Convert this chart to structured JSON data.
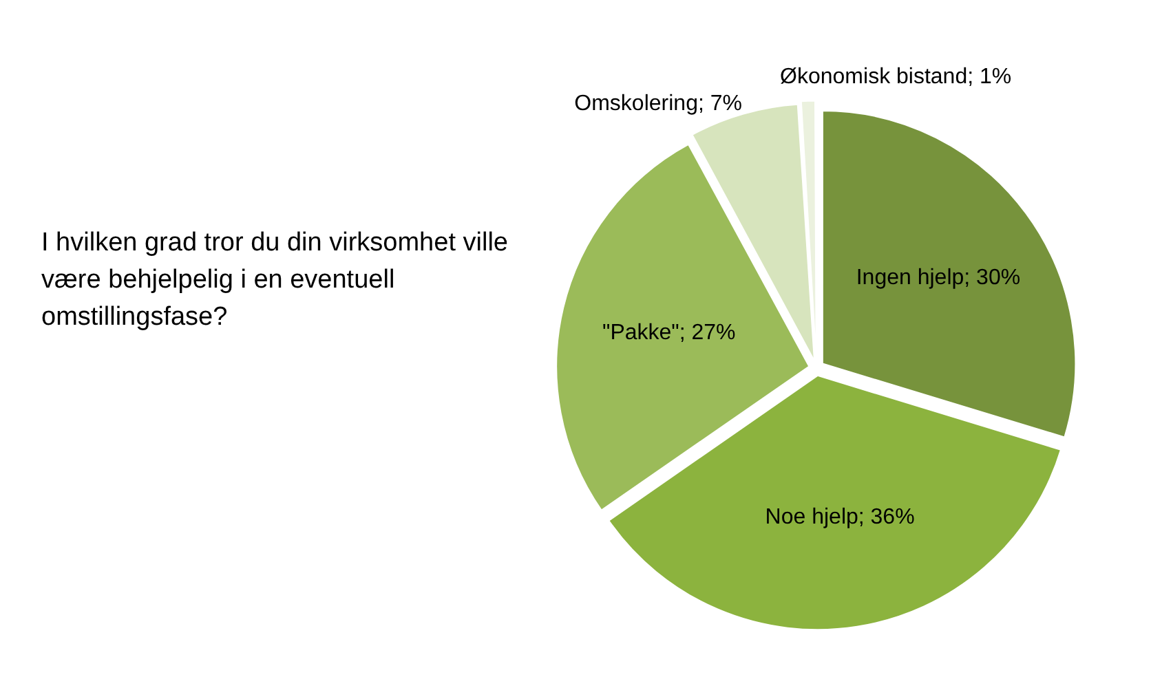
{
  "chart_data": {
    "type": "pie",
    "title": "I hvilken grad tror du din virksomhet ville være behjelpelig i en eventuell omstillingsfase?",
    "categories": [
      "Ingen hjelp",
      "Noe hjelp",
      "\"Pakke\"",
      "Omskolering",
      "Økonomisk bistand"
    ],
    "values": [
      30,
      36,
      27,
      7,
      1
    ],
    "colors": [
      "#77933c",
      "#8cb33e",
      "#9bbb59",
      "#d7e4bd",
      "#ebf1de"
    ],
    "value_labels": [
      "; 30%",
      "; 36%",
      "; 27%",
      "; 7%",
      "; 1%"
    ],
    "legend": false
  }
}
